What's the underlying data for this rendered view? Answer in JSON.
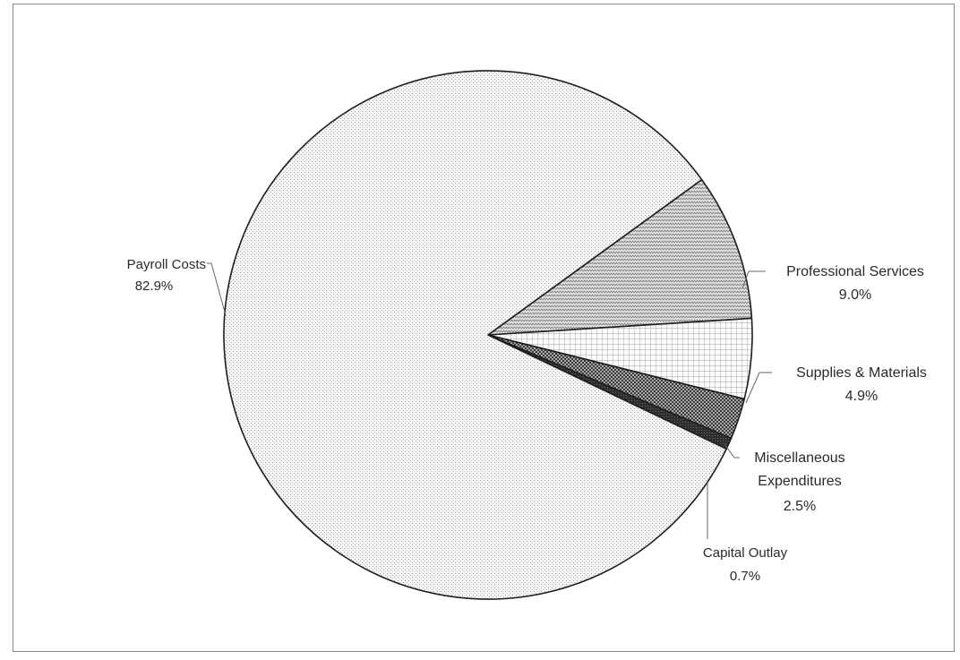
{
  "chart_data": {
    "type": "pie",
    "title": "",
    "legend": "none",
    "slices": [
      {
        "name": "Payroll Costs",
        "value": 82.9,
        "label_lines": [
          "Payroll Costs"
        ],
        "value_label": "82.9%",
        "pattern": "dots"
      },
      {
        "name": "Professional Services",
        "value": 9.0,
        "label_lines": [
          "Professional Services"
        ],
        "value_label": "9.0%",
        "pattern": "waves"
      },
      {
        "name": "Supplies & Materials",
        "value": 4.9,
        "label_lines": [
          "Supplies & Materials"
        ],
        "value_label": "4.9%",
        "pattern": "grid"
      },
      {
        "name": "Miscellaneous Expenditures",
        "value": 2.5,
        "label_lines": [
          "Miscellaneous",
          "Expenditures"
        ],
        "value_label": "2.5%",
        "pattern": "checker"
      },
      {
        "name": "Capital Outlay",
        "value": 0.7,
        "label_lines": [
          "Capital Outlay"
        ],
        "value_label": "0.7%",
        "pattern": "dark"
      }
    ]
  }
}
